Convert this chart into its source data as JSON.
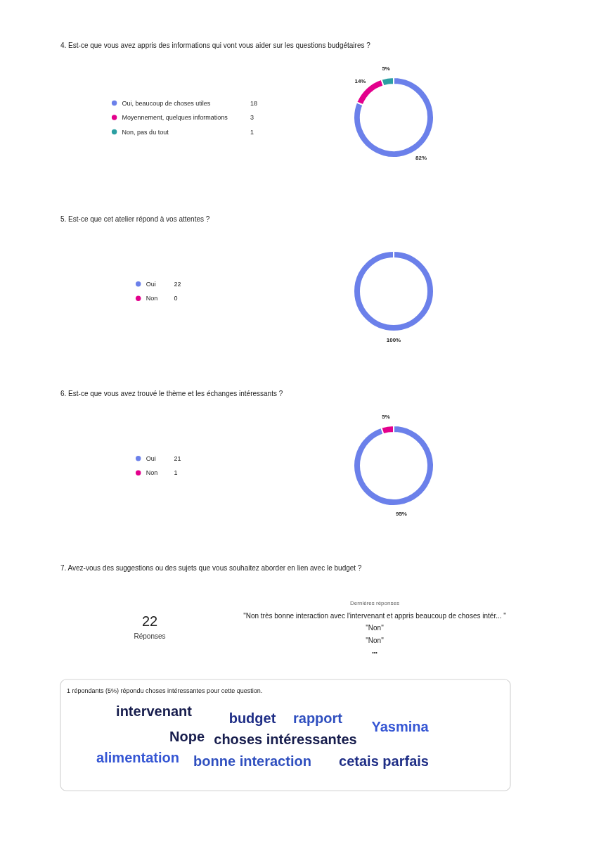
{
  "chart_data": [
    {
      "type": "donut",
      "title": "4. Est-ce que vous avez appris des informations qui vont vous aider sur les questions budgétaires ?",
      "categories": [
        "Oui, beaucoup de choses utiles",
        "Moyennement, quelques informations",
        "Non, pas du tout"
      ],
      "values": [
        82,
        14,
        5
      ],
      "colors": [
        "#6b80ea",
        "#e3008c",
        "#2b9fa2"
      ],
      "value_labels": [
        "82%",
        "14%",
        "5%"
      ],
      "annotations": [
        "18",
        "3",
        "1"
      ],
      "legend": "left"
    },
    {
      "type": "donut",
      "title": "5. Est-ce que cet atelier répond à vos attentes ?",
      "categories": [
        "Oui",
        "Non"
      ],
      "values": [
        100,
        0
      ],
      "colors": [
        "#6b80ea",
        "#e3008c"
      ],
      "value_labels": [
        "100%",
        null
      ],
      "annotations": [
        "22",
        "0"
      ],
      "legend": "left"
    },
    {
      "type": "donut",
      "title": "6. Est-ce que vous avez trouvé le thème et les échanges intéressants ?",
      "categories": [
        "Oui",
        "Non"
      ],
      "values": [
        95,
        5
      ],
      "colors": [
        "#6b80ea",
        "#e3008c"
      ],
      "value_labels": [
        "95%",
        "5%"
      ],
      "annotations": [
        "21",
        "1"
      ],
      "legend": "left"
    },
    {
      "type": "other",
      "title": "7. Avez-vous des suggestions ou des sujets que vous souhaitez aborder en lien avec le budget ?",
      "annotations": [
        "22",
        "Réponses",
        "Dernières réponses",
        "\"Non très bonne interaction avec l'intervenant et appris beaucoup de choses intér... \"",
        "\"Non\"",
        "\"Non\"",
        "•••",
        "1 répondants (5%) répondu choses intéressantes pour cette question.",
        "intervenant",
        "budget",
        "rapport",
        "Yasmina",
        "Nope",
        "choses intéressantes",
        "alimentation",
        "bonne interaction",
        "cetais parfais"
      ]
    }
  ]
}
